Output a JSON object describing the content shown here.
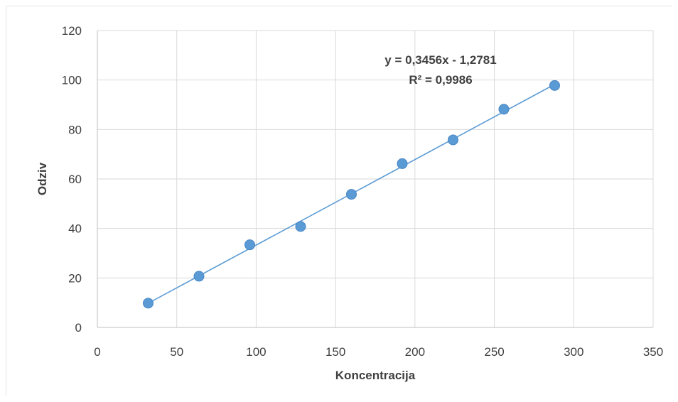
{
  "chart_data": {
    "type": "scatter",
    "title": "",
    "xlabel": "Koncentracija",
    "ylabel": "Odziv",
    "xlim": [
      0,
      350
    ],
    "ylim": [
      0,
      120
    ],
    "x_ticks": [
      0,
      50,
      100,
      150,
      200,
      250,
      300,
      350
    ],
    "y_ticks": [
      0,
      20,
      40,
      60,
      80,
      100,
      120
    ],
    "grid": true,
    "legend": "none",
    "series": [
      {
        "x": [
          32,
          64,
          96,
          128,
          160,
          192,
          224,
          256,
          288
        ],
        "y": [
          9.8,
          20.7,
          33.4,
          40.8,
          53.8,
          66.2,
          75.8,
          88.2,
          97.8
        ],
        "marker_color": "#5b9bd5"
      }
    ],
    "trendline": {
      "type": "linear",
      "slope": 0.3456,
      "intercept": -1.2781,
      "x_range": [
        32,
        288
      ],
      "color": "#5b9bd5"
    },
    "annotations": {
      "equation": "y = 0,3456x - 1,2781",
      "r_squared": "R² = 0,9986"
    }
  }
}
